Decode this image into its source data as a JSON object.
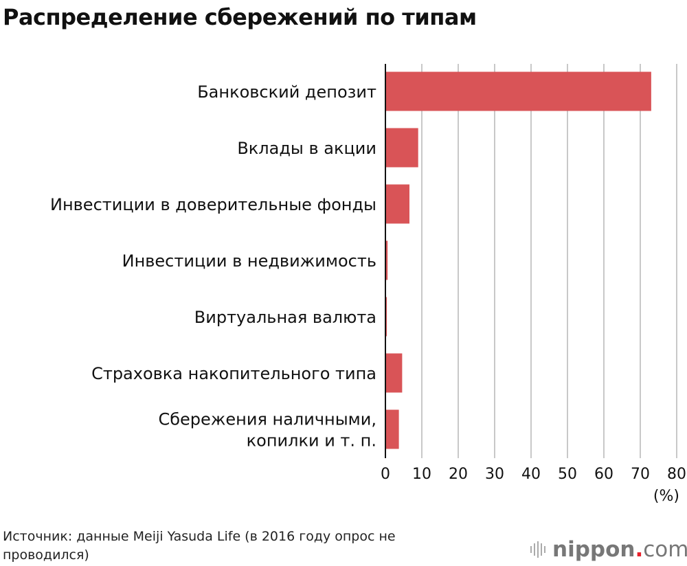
{
  "title": "Распределение сбережений по типам",
  "source": "Источник: данные Meiji Yasuda Life (в 2016 году опрос не проводился)",
  "logo": {
    "brand": "nippon",
    "dot": ".",
    "tld": "com"
  },
  "chart_data": {
    "type": "bar",
    "orientation": "horizontal",
    "title": "Распределение сбережений по типам",
    "categories": [
      [
        "Банковский депозит"
      ],
      [
        "Вклады в акции"
      ],
      [
        "Инвестиции в доверительные фонды"
      ],
      [
        "Инвестиции в недвижимость"
      ],
      [
        "Виртуальная валюта"
      ],
      [
        "Страховка накопительного типа"
      ],
      [
        "Сбережения наличными,",
        "копилки и т. п."
      ]
    ],
    "values": [
      73.0,
      9.0,
      6.6,
      0.6,
      0.4,
      4.6,
      3.7
    ],
    "xlim": [
      0,
      80
    ],
    "xticks": [
      "0",
      "10",
      "20",
      "30",
      "40",
      "50",
      "60",
      "70",
      "80"
    ],
    "xunit": "(%)",
    "grid": "vertical",
    "bar_color": "#d95457"
  }
}
